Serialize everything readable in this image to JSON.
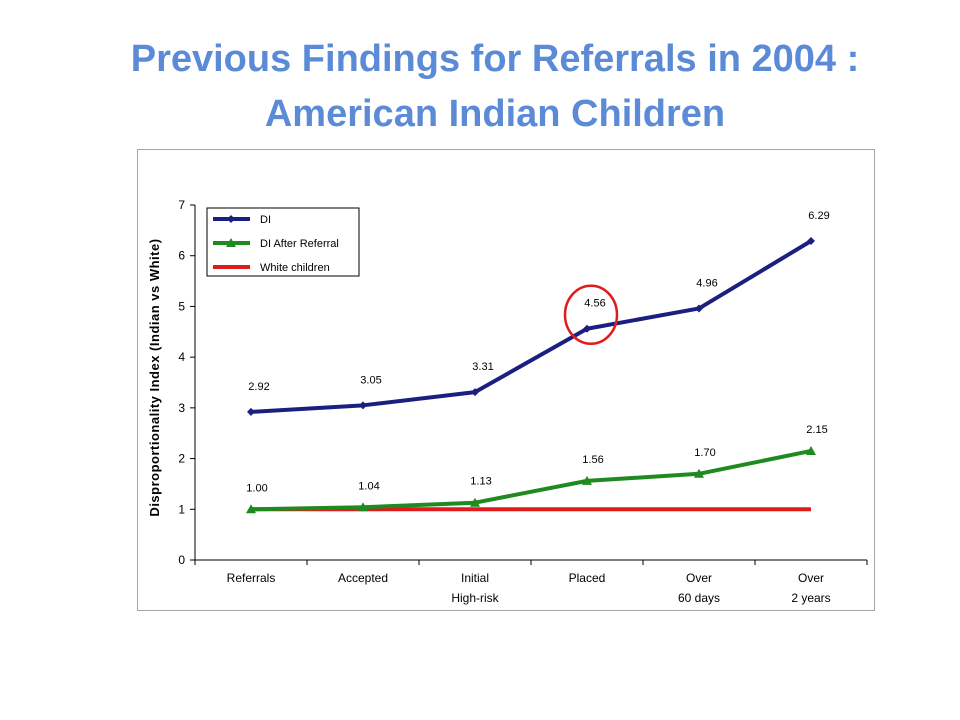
{
  "slide": {
    "title_line1": "Previous Findings for Referrals in 2004 :",
    "title_line2": "American Indian Children"
  },
  "chart_data": {
    "type": "line",
    "categories": [
      [
        "Referrals"
      ],
      [
        "Accepted"
      ],
      [
        "Initial",
        "High-risk"
      ],
      [
        "Placed"
      ],
      [
        "Over",
        "60 days"
      ],
      [
        "Over",
        "2 years"
      ]
    ],
    "ylabel": "Disproportionality  Index  (Indian  vs  White)",
    "xlabel": "",
    "ylim": [
      0,
      7
    ],
    "yticks": [
      0,
      1,
      2,
      3,
      4,
      5,
      6,
      7
    ],
    "grid": false,
    "legend_position": "top-left",
    "series": [
      {
        "name": "DI",
        "values": [
          2.92,
          3.05,
          3.31,
          4.56,
          4.96,
          6.29
        ],
        "labels": [
          "2.92",
          "3.05",
          "3.31",
          "4.56",
          "4.96",
          "6.29"
        ],
        "color": "#1a1f80",
        "marker": "diamond"
      },
      {
        "name": "DI After Referral",
        "values": [
          1.0,
          1.04,
          1.13,
          1.56,
          1.7,
          2.15
        ],
        "labels": [
          "1.00",
          "1.04",
          "1.13",
          "1.56",
          "1.70",
          "2.15"
        ],
        "color": "#1f8a1f",
        "marker": "triangle"
      },
      {
        "name": "White children",
        "values": [
          1,
          1,
          1,
          1,
          1,
          1
        ],
        "labels": [],
        "color": "#e01b1b",
        "marker": "none"
      }
    ],
    "annotation": {
      "type": "circle",
      "series": "DI",
      "category_index": 3,
      "color": "#e01b1b"
    }
  }
}
